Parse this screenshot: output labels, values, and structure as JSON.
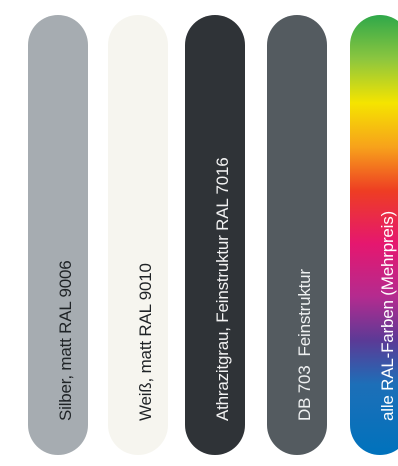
{
  "swatches": [
    {
      "label": "Silber, matt RAL 9006",
      "color": "#a6acb1"
    },
    {
      "label": "Weiß, matt RAL 9010",
      "color": "#f6f5ef"
    },
    {
      "label": "Athrazitgrau, Feinstruktur RAL 7016",
      "color": "#2f3337"
    },
    {
      "label": "DB 703  Feinstruktur",
      "color": "#545b60"
    },
    {
      "label": "alle RAL-Farben (Mehrpreis)",
      "color": "rainbow-gradient"
    }
  ]
}
